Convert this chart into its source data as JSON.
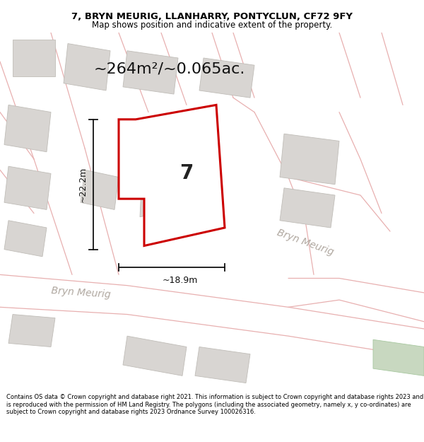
{
  "title_line1": "7, BRYN MEURIG, LLANHARRY, PONTYCLUN, CF72 9FY",
  "title_line2": "Map shows position and indicative extent of the property.",
  "area_text": "~264m²/~0.065ac.",
  "dim_width": "~18.9m",
  "dim_height": "~22.2m",
  "label_number": "7",
  "street_label1": "Bryn Meurig",
  "street_label2": "Bryn Meurig",
  "footer_text": "Contains OS data © Crown copyright and database right 2021. This information is subject to Crown copyright and database rights 2023 and is reproduced with the permission of HM Land Registry. The polygons (including the associated geometry, namely x, y co-ordinates) are subject to Crown copyright and database rights 2023 Ordnance Survey 100026316.",
  "bg_color": "#ffffff",
  "map_bg": "#f7f2f0",
  "road_color": "#ffffff",
  "road_edge_color": "#f0b8b8",
  "building_color": "#d8d5d2",
  "building_edge_color": "#c0bdb8",
  "plot_outline_color": "#cc0000",
  "plot_fill_color": "#ffffff",
  "dim_color": "#111111",
  "title_color": "#000000",
  "footer_color": "#000000",
  "street_text_color": "#b0a8a0",
  "green_color": "#c8d8c0",
  "pink_line_color": "#e8b0b0",
  "title_fontsize": 9.5,
  "subtitle_fontsize": 8.5,
  "area_fontsize": 16,
  "dim_fontsize": 9,
  "number_fontsize": 20,
  "street_fontsize": 10,
  "footer_fontsize": 6.0
}
